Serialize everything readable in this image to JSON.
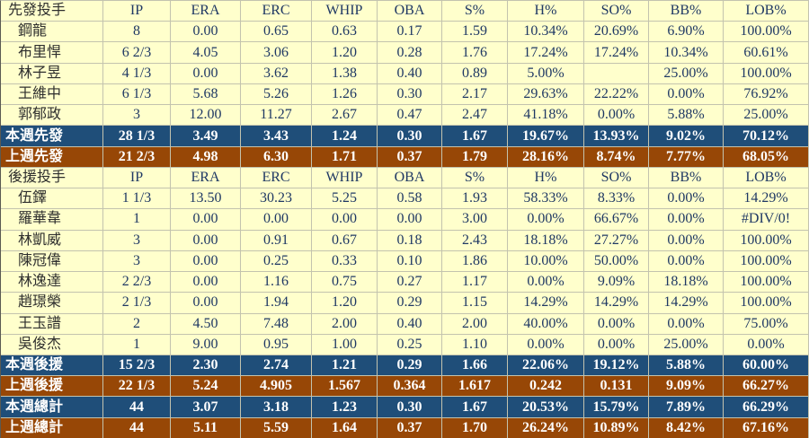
{
  "colors": {
    "table_bg": "#FFFFCC",
    "grid_line": "#C3C3AE",
    "number_text": "#1F3864",
    "this_week_row_bg": "#1F4E79",
    "last_week_row_bg": "#974706",
    "summary_text": "#FFFFFF"
  },
  "table": {
    "rows": [
      {
        "type": "header",
        "cells": [
          "先發投手",
          "IP",
          "ERA",
          "ERC",
          "WHIP",
          "OBA",
          "S%",
          "H%",
          "SO%",
          "BB%",
          "LOB%"
        ]
      },
      {
        "type": "player",
        "cells": [
          "鋼龍",
          "8",
          "0.00",
          "0.65",
          "0.63",
          "0.17",
          "1.59",
          "10.34%",
          "20.69%",
          "6.90%",
          "100.00%"
        ]
      },
      {
        "type": "player",
        "cells": [
          "布里悍",
          "6 2/3",
          "4.05",
          "3.06",
          "1.20",
          "0.28",
          "1.76",
          "17.24%",
          "17.24%",
          "10.34%",
          "60.61%"
        ]
      },
      {
        "type": "player",
        "cells": [
          "林子昱",
          "4 1/3",
          "0.00",
          "3.62",
          "1.38",
          "0.40",
          "0.89",
          "5.00%",
          "",
          "25.00%",
          "100.00%"
        ]
      },
      {
        "type": "player",
        "cells": [
          "王維中",
          "6 1/3",
          "5.68",
          "5.26",
          "1.26",
          "0.30",
          "2.17",
          "29.63%",
          "22.22%",
          "0.00%",
          "76.92%"
        ]
      },
      {
        "type": "player",
        "cells": [
          "郭郁政",
          "3",
          "12.00",
          "11.27",
          "2.67",
          "0.47",
          "2.47",
          "41.18%",
          "0.00%",
          "5.88%",
          "25.00%"
        ]
      },
      {
        "type": "this",
        "cells": [
          "本週先發",
          "28 1/3",
          "3.49",
          "3.43",
          "1.24",
          "0.30",
          "1.67",
          "19.67%",
          "13.93%",
          "9.02%",
          "70.12%"
        ]
      },
      {
        "type": "last",
        "cells": [
          "上週先發",
          "21 2/3",
          "4.98",
          "6.30",
          "1.71",
          "0.37",
          "1.79",
          "28.16%",
          "8.74%",
          "7.77%",
          "68.05%"
        ]
      },
      {
        "type": "header",
        "cells": [
          "後援投手",
          "IP",
          "ERA",
          "ERC",
          "WHIP",
          "OBA",
          "S%",
          "H%",
          "SO%",
          "BB%",
          "LOB%"
        ]
      },
      {
        "type": "player",
        "cells": [
          "伍鐸",
          "1 1/3",
          "13.50",
          "30.23",
          "5.25",
          "0.58",
          "1.93",
          "58.33%",
          "8.33%",
          "0.00%",
          "14.29%"
        ]
      },
      {
        "type": "player",
        "cells": [
          "羅華韋",
          "1",
          "0.00",
          "0.00",
          "0.00",
          "0.00",
          "3.00",
          "0.00%",
          "66.67%",
          "0.00%",
          "#DIV/0!"
        ]
      },
      {
        "type": "player",
        "cells": [
          "林凱威",
          "3",
          "0.00",
          "0.91",
          "0.67",
          "0.18",
          "2.43",
          "18.18%",
          "27.27%",
          "0.00%",
          "100.00%"
        ]
      },
      {
        "type": "player",
        "cells": [
          "陳冠偉",
          "3",
          "0.00",
          "0.25",
          "0.33",
          "0.10",
          "1.86",
          "10.00%",
          "50.00%",
          "0.00%",
          "100.00%"
        ]
      },
      {
        "type": "player",
        "cells": [
          "林逸達",
          "2 2/3",
          "0.00",
          "1.16",
          "0.75",
          "0.27",
          "1.17",
          "0.00%",
          "9.09%",
          "18.18%",
          "100.00%"
        ]
      },
      {
        "type": "player",
        "cells": [
          "趙璟榮",
          "2 1/3",
          "0.00",
          "1.94",
          "1.20",
          "0.29",
          "1.15",
          "14.29%",
          "14.29%",
          "14.29%",
          "100.00%"
        ]
      },
      {
        "type": "player",
        "cells": [
          "王玉譜",
          "2",
          "4.50",
          "7.48",
          "2.00",
          "0.40",
          "2.00",
          "40.00%",
          "0.00%",
          "0.00%",
          "75.00%"
        ]
      },
      {
        "type": "player",
        "cells": [
          "吳俊杰",
          "1",
          "9.00",
          "0.95",
          "1.00",
          "0.25",
          "1.10",
          "0.00%",
          "0.00%",
          "25.00%",
          "0.00%"
        ]
      },
      {
        "type": "this",
        "cells": [
          "本週後援",
          "15 2/3",
          "2.30",
          "2.74",
          "1.21",
          "0.29",
          "1.66",
          "22.06%",
          "19.12%",
          "5.88%",
          "60.00%"
        ]
      },
      {
        "type": "last",
        "cells": [
          "上週後援",
          "22 1/3",
          "5.24",
          "4.905",
          "1.567",
          "0.364",
          "1.617",
          "0.242",
          "0.131",
          "9.09%",
          "66.27%"
        ]
      },
      {
        "type": "this",
        "cells": [
          "本週總計",
          "44",
          "3.07",
          "3.18",
          "1.23",
          "0.30",
          "1.67",
          "20.53%",
          "15.79%",
          "7.89%",
          "66.29%"
        ]
      },
      {
        "type": "last",
        "cells": [
          "上週總計",
          "44",
          "5.11",
          "5.59",
          "1.64",
          "0.37",
          "1.70",
          "26.24%",
          "10.89%",
          "8.42%",
          "67.16%"
        ]
      }
    ]
  }
}
